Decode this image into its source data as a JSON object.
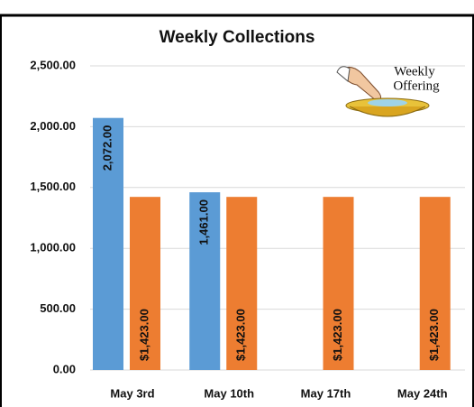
{
  "chart_data": {
    "type": "bar",
    "title": "Weekly Collections",
    "categories": [
      "May 3rd",
      "May 10th",
      "May 17th",
      "May 24th"
    ],
    "series": [
      {
        "color": "#5b9bd5",
        "values": [
          2072,
          1461,
          null,
          null
        ],
        "value_labels": [
          "2,072.00",
          "1,461.00",
          null,
          null
        ]
      },
      {
        "color": "#ed7d31",
        "values": [
          1423,
          1423,
          1423,
          1423
        ],
        "value_labels": [
          "$1,423.00",
          "$1,423.00",
          "$1,423.00",
          "$1,423.00"
        ]
      }
    ],
    "ylim": [
      0,
      2500
    ],
    "yticks": [
      {
        "value": 0,
        "label": "0.00"
      },
      {
        "value": 500,
        "label": "500.00"
      },
      {
        "value": 1000,
        "label": "1,000.00"
      },
      {
        "value": 1500,
        "label": "1,500.00"
      },
      {
        "value": 2000,
        "label": "2,000.00"
      },
      {
        "value": 2500,
        "label": "2,500.00"
      }
    ],
    "grid": true,
    "annotations": [
      "Weekly",
      "Offering"
    ]
  }
}
